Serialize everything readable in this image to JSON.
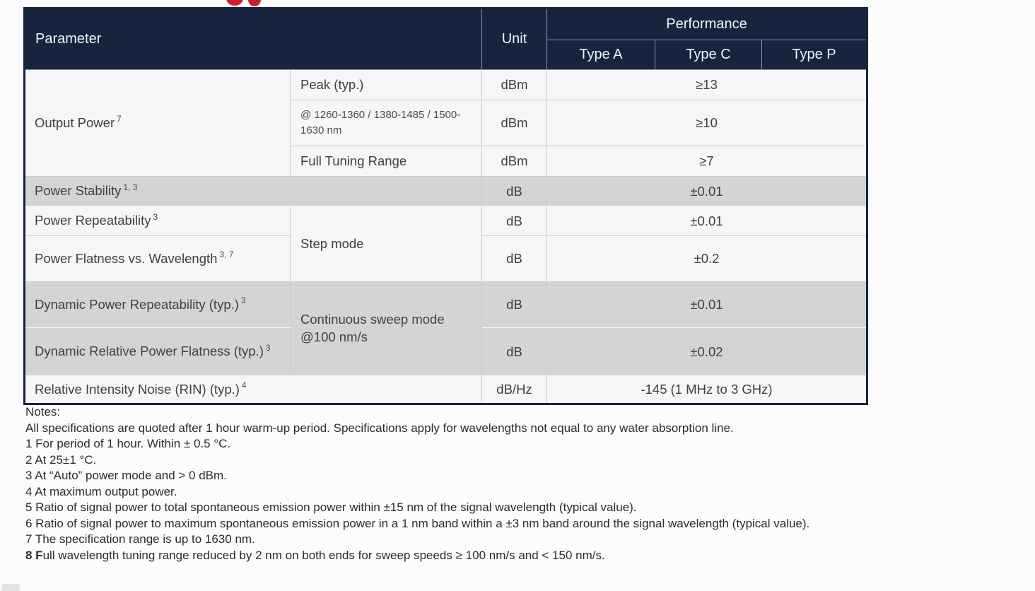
{
  "logo": {
    "color": "#c4242b"
  },
  "table": {
    "header": {
      "parameter": "Parameter",
      "unit": "Unit",
      "performance": "Performance",
      "type_a": "Type A",
      "type_c": "Type C",
      "type_p": "Type P"
    },
    "output_power": {
      "label": "Output Power",
      "sup": "7",
      "peak": {
        "label": "Peak (typ.)",
        "unit": "dBm",
        "value": "≥13"
      },
      "bands": {
        "label": "@ 1260-1360 / 1380-1485 / 1500-1630 nm",
        "unit": "dBm",
        "value": "≥10"
      },
      "full_range": {
        "label": "Full Tuning Range",
        "unit": "dBm",
        "value": "≥7"
      }
    },
    "power_stability": {
      "label": "Power Stability",
      "sup": "1, 3",
      "unit": "dB",
      "value": "±0.01"
    },
    "step_mode": {
      "mode": "Step mode",
      "power_repeatability": {
        "label": "Power Repeatability",
        "sup": "3",
        "unit": "dB",
        "value": "±0.01"
      },
      "power_flatness": {
        "label": "Power Flatness vs. Wavelength",
        "sup": "3, 7",
        "unit": "dB",
        "value": "±0.2"
      }
    },
    "sweep_mode": {
      "mode": "Continuous sweep mode @100 nm/s",
      "dynamic_repeatability": {
        "label": "Dynamic Power Repeatability (typ.)",
        "sup": "3",
        "unit": "dB",
        "value": "±0.01"
      },
      "dynamic_flatness": {
        "label": "Dynamic Relative Power Flatness (typ.)",
        "sup": "3",
        "unit": "dB",
        "value": "±0.02"
      }
    },
    "rin": {
      "label": "Relative Intensity Noise (RIN) (typ.)",
      "sup": "4",
      "unit": "dB/Hz",
      "value": "-145 (1 MHz to 3 GHz)"
    }
  },
  "notes": {
    "title": "Notes:",
    "line0": "All specifications are quoted after 1 hour warm-up period. Specifications apply for wavelengths not equal to any water absorption line.",
    "line1": "1 For period of 1 hour. Within ± 0.5 °C.",
    "line2": "2 At 25±1 °C.",
    "line3": "3 At “Auto” power mode and > 0 dBm.",
    "line4": "4 At maximum output power.",
    "line5": "5 Ratio of signal power to total spontaneous emission power within ±15 nm of the signal wavelength (typical value).",
    "line6": "6 Ratio of signal power to maximum spontaneous emission power in a 1 nm band within a ±3 nm band around the signal wavelength (typical value).",
    "line7": "7 The specification range is up to 1630 nm.",
    "line8_bold": "8 F",
    "line8_rest": "ull wavelength tuning range reduced by 2 nm on both ends for sweep speeds ≥ 100 nm/s and < 150 nm/s."
  }
}
